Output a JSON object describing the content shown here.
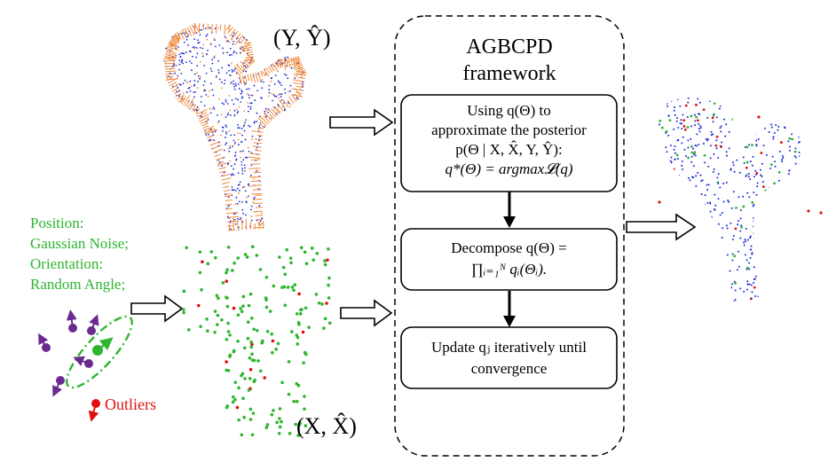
{
  "top_label": "(Y, Ŷ)",
  "bottom_label": "(X, X̂)",
  "framework": {
    "title_line1": "AGBCPD",
    "title_line2": "framework"
  },
  "box1": {
    "line1": "Using q(Θ) to",
    "line2": "approximate the posterior",
    "line3": "p(Θ | X, X̂, Y, Ŷ):",
    "line4": "q*(Θ) = argmax𝓛(q)"
  },
  "box2": {
    "line1": "Decompose q(Θ) =",
    "line2": "∏ᵢ₌₁ᴺ qᵢ(Θᵢ)."
  },
  "box3": {
    "line1": "Update qⱼ iteratively until",
    "line2": "convergence"
  },
  "noise_legend": {
    "line1": "Position:",
    "line2": "Gaussian Noise;",
    "line3": "Orientation:",
    "line4": "Random Angle;"
  },
  "outliers_label": "Outliers",
  "colors": {
    "green": "#2fb52f",
    "red": "#e01010",
    "purple": "#6a2a8f",
    "blue": "#1a2bd6",
    "orange": "#f08a3a"
  }
}
